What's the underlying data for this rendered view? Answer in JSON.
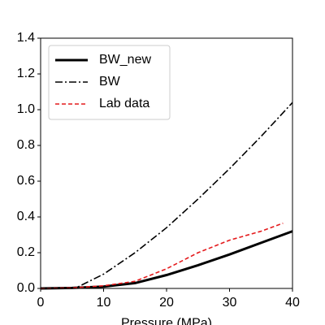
{
  "chart_data": {
    "type": "line",
    "xlabel": "Pressure (MPa)",
    "series": [
      {
        "name": "BW_new",
        "color": "#000000",
        "style": "solid",
        "x": [
          0,
          5,
          10,
          15,
          20,
          25,
          30,
          35,
          40
        ],
        "values": [
          0,
          0.003,
          0.01,
          0.03,
          0.075,
          0.13,
          0.19,
          0.255,
          0.32
        ]
      },
      {
        "name": "BW",
        "color": "#000000",
        "style": "dashdot",
        "x": [
          0,
          5,
          6,
          10,
          15,
          20,
          25,
          30,
          35,
          40
        ],
        "values": [
          0,
          0.003,
          0.01,
          0.08,
          0.2,
          0.34,
          0.5,
          0.67,
          0.85,
          1.04
        ]
      },
      {
        "name": "Lab data",
        "color": "#e41a1c",
        "style": "dashed",
        "x": [
          0,
          5,
          10,
          15,
          20,
          25,
          30,
          35,
          38.5
        ],
        "values": [
          0,
          0.003,
          0.015,
          0.04,
          0.11,
          0.2,
          0.27,
          0.32,
          0.365
        ]
      }
    ],
    "xlim": [
      0,
      40
    ],
    "xticks": [
      0,
      10,
      20,
      30,
      40
    ],
    "ylim": [
      0,
      1.4
    ],
    "yticks": [
      {
        "value": 0,
        "label": "0.0"
      },
      {
        "value": 0.2,
        "label": "0.2"
      },
      {
        "value": 0.4,
        "label": "0.4"
      },
      {
        "value": 0.6,
        "label": "0.6"
      },
      {
        "value": 0.8,
        "label": "0.8"
      },
      {
        "value": 1.0,
        "label": "1.0"
      },
      {
        "value": 1.2,
        "label": "1.2"
      },
      {
        "value": 1.4,
        "label": "1.4"
      }
    ],
    "legend": "upper left"
  }
}
